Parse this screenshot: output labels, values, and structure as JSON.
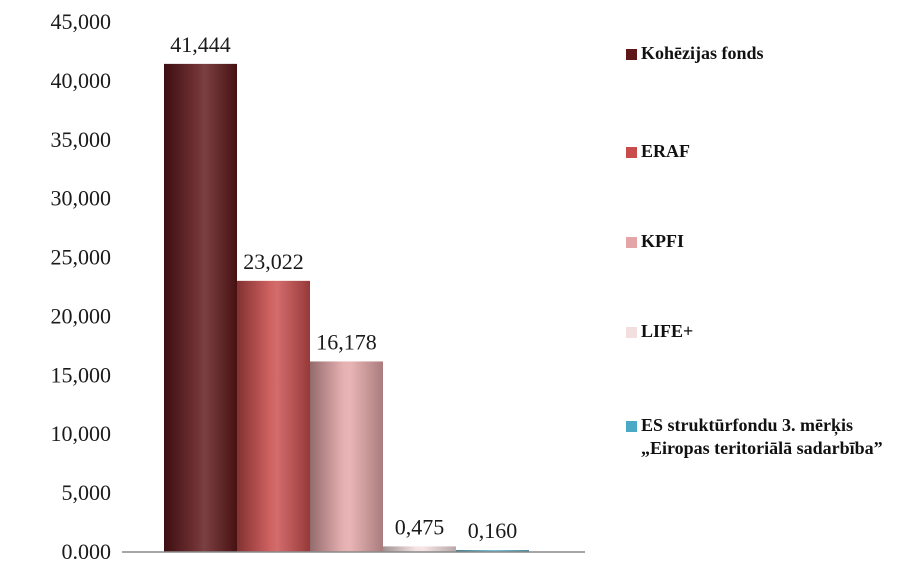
{
  "chart_data": {
    "type": "bar",
    "title": "",
    "xlabel": "",
    "ylabel": "",
    "ylim": [
      0,
      45
    ],
    "y_ticks": [
      "45,000",
      "40,000",
      "35,000",
      "30,000",
      "25,000",
      "20,000",
      "15,000",
      "10,000",
      "5,000",
      "0.000"
    ],
    "grid": false,
    "legend_position": "right",
    "series": [
      {
        "name": "Kohēzijas fonds",
        "value": 41.444,
        "label": "41,444",
        "color": "#5e1618"
      },
      {
        "name": "ERAF",
        "value": 23.022,
        "label": "23,022",
        "color": "#c94c4c"
      },
      {
        "name": "KPFI",
        "value": 16.178,
        "label": "16,178",
        "color": "#e3a5a6"
      },
      {
        "name": "LIFE+",
        "value": 0.475,
        "label": "0,475",
        "color": "#f4dfe0"
      },
      {
        "name": "ES struktūrfondu 3. mērķis",
        "name_line2": "„Eiropas teritoriālā sadarbība”",
        "value": 0.16,
        "label": "0,160",
        "color": "#4aa9c4"
      }
    ]
  }
}
